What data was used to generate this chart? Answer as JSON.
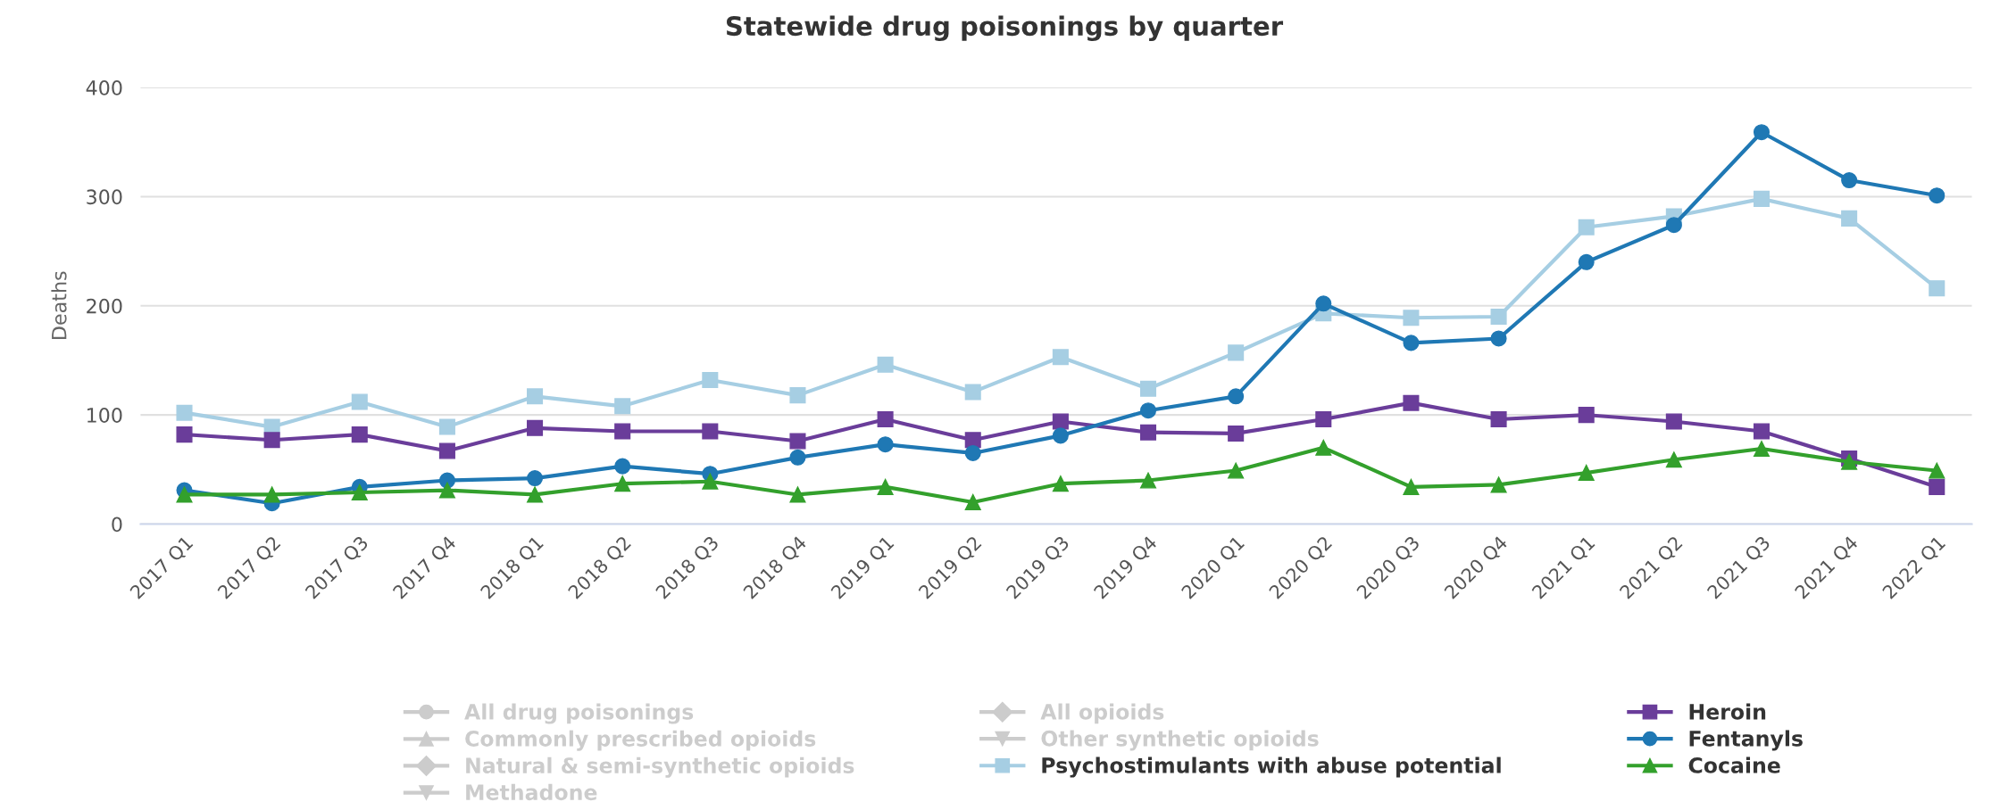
{
  "chart_data": {
    "type": "line",
    "title": "Statewide drug poisonings by quarter",
    "ylabel": "Deaths",
    "categories": [
      "2017 Q1",
      "2017 Q2",
      "2017 Q3",
      "2017 Q4",
      "2018 Q1",
      "2018 Q2",
      "2018 Q3",
      "2018 Q4",
      "2019 Q1",
      "2019 Q2",
      "2019 Q3",
      "2019 Q4",
      "2020 Q1",
      "2020 Q2",
      "2020 Q3",
      "2020 Q4",
      "2021 Q1",
      "2021 Q2",
      "2021 Q3",
      "2021 Q4",
      "2022 Q1"
    ],
    "ylim": [
      0,
      400
    ],
    "yticks": [
      0,
      100,
      200,
      300,
      400
    ],
    "grid": "y",
    "legend": "bottom",
    "line_style": "solid",
    "series": [
      {
        "name": "All drug poisonings",
        "color": "#cccccc",
        "marker": "circle",
        "values": [
          null,
          null,
          null,
          null,
          null,
          null,
          null,
          null,
          null,
          null,
          null,
          null,
          null,
          null,
          null,
          null,
          null,
          null,
          null,
          null,
          null
        ]
      },
      {
        "name": "Commonly prescribed opioids",
        "color": "#cccccc",
        "marker": "triangle",
        "values": [
          null,
          null,
          null,
          null,
          null,
          null,
          null,
          null,
          null,
          null,
          null,
          null,
          null,
          null,
          null,
          null,
          null,
          null,
          null,
          null,
          null
        ]
      },
      {
        "name": "Natural & semi-synthetic opioids",
        "color": "#cccccc",
        "marker": "diamond",
        "values": [
          null,
          null,
          null,
          null,
          null,
          null,
          null,
          null,
          null,
          null,
          null,
          null,
          null,
          null,
          null,
          null,
          null,
          null,
          null,
          null,
          null
        ]
      },
      {
        "name": "Methadone",
        "color": "#cccccc",
        "marker": "triangle-down",
        "values": [
          null,
          null,
          null,
          null,
          null,
          null,
          null,
          null,
          null,
          null,
          null,
          null,
          null,
          null,
          null,
          null,
          null,
          null,
          null,
          null,
          null
        ]
      },
      {
        "name": "All opioids",
        "color": "#cccccc",
        "marker": "diamond",
        "values": [
          null,
          null,
          null,
          null,
          null,
          null,
          null,
          null,
          null,
          null,
          null,
          null,
          null,
          null,
          null,
          null,
          null,
          null,
          null,
          null,
          null
        ]
      },
      {
        "name": "Other synthetic opioids",
        "color": "#cccccc",
        "marker": "triangle-down",
        "values": [
          null,
          null,
          null,
          null,
          null,
          null,
          null,
          null,
          null,
          null,
          null,
          null,
          null,
          null,
          null,
          null,
          null,
          null,
          null,
          null,
          null
        ]
      },
      {
        "name": "Psychostimulants with abuse potential",
        "color": "#a6cee3",
        "marker": "square",
        "values": [
          102,
          89,
          112,
          89,
          117,
          108,
          132,
          118,
          146,
          121,
          153,
          124,
          157,
          193,
          189,
          190,
          272,
          282,
          298,
          280,
          216
        ]
      },
      {
        "name": "Heroin",
        "color": "#6a3d9a",
        "marker": "square",
        "values": [
          82,
          77,
          82,
          67,
          88,
          85,
          85,
          76,
          96,
          77,
          94,
          84,
          83,
          96,
          111,
          96,
          100,
          94,
          85,
          60,
          34
        ]
      },
      {
        "name": "Fentanyls",
        "color": "#1f78b4",
        "marker": "circle",
        "values": [
          31,
          19,
          34,
          40,
          42,
          53,
          46,
          61,
          73,
          65,
          81,
          104,
          117,
          202,
          166,
          170,
          240,
          274,
          359,
          315,
          301
        ]
      },
      {
        "name": "Cocaine",
        "color": "#33a02c",
        "marker": "triangle",
        "values": [
          27,
          27,
          29,
          31,
          27,
          37,
          39,
          27,
          34,
          20,
          37,
          40,
          49,
          70,
          34,
          36,
          47,
          59,
          69,
          57,
          49
        ]
      }
    ]
  }
}
